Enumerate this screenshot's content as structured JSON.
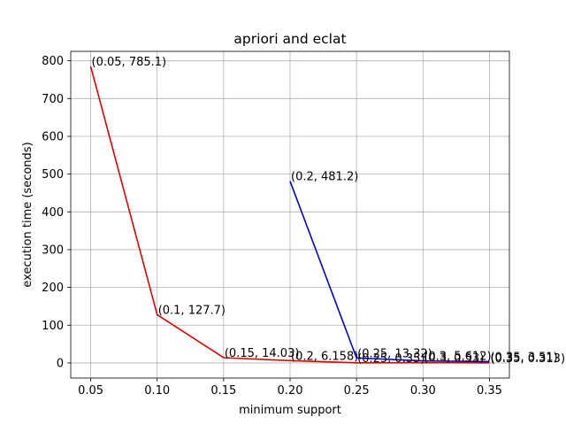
{
  "chart_data": {
    "type": "line",
    "title": "apriori and eclat",
    "xlabel": "minimum support",
    "ylabel": "execution time (seconds)",
    "xlim": [
      0.035,
      0.365
    ],
    "ylim": [
      -40,
      825
    ],
    "grid": true,
    "x_ticks": [
      0.05,
      0.1,
      0.15,
      0.2,
      0.25,
      0.3,
      0.35
    ],
    "x_tick_labels": [
      "0.05",
      "0.10",
      "0.15",
      "0.20",
      "0.25",
      "0.30",
      "0.35"
    ],
    "y_ticks": [
      0,
      100,
      200,
      300,
      400,
      500,
      600,
      700,
      800
    ],
    "y_tick_labels": [
      "0",
      "100",
      "200",
      "300",
      "400",
      "500",
      "600",
      "700",
      "800"
    ],
    "series": [
      {
        "color": "#e00000",
        "x": [
          0.05,
          0.1,
          0.15,
          0.2,
          0.25,
          0.3,
          0.35
        ],
        "y": [
          785.1,
          127.7,
          14.03,
          6.158,
          0.35,
          0.53,
          0.313
        ],
        "labels": [
          "(0.05, 785.1)",
          "(0.1, 127.7)",
          "(0.15, 14.03)",
          "(0.2, 6.158)",
          "(0.25, 0.35)",
          "(0.3, 0.53)",
          "(0.35, 0.313)"
        ]
      },
      {
        "color": "#0000d0",
        "x": [
          0.2,
          0.25,
          0.3,
          0.35
        ],
        "y": [
          481.2,
          13.32,
          5.612,
          3.51
        ],
        "labels": [
          "(0.2, 481.2)",
          "(0.25, 13.32)",
          "(0.3, 5.612)",
          "(0.35, 3.51)"
        ]
      }
    ]
  }
}
